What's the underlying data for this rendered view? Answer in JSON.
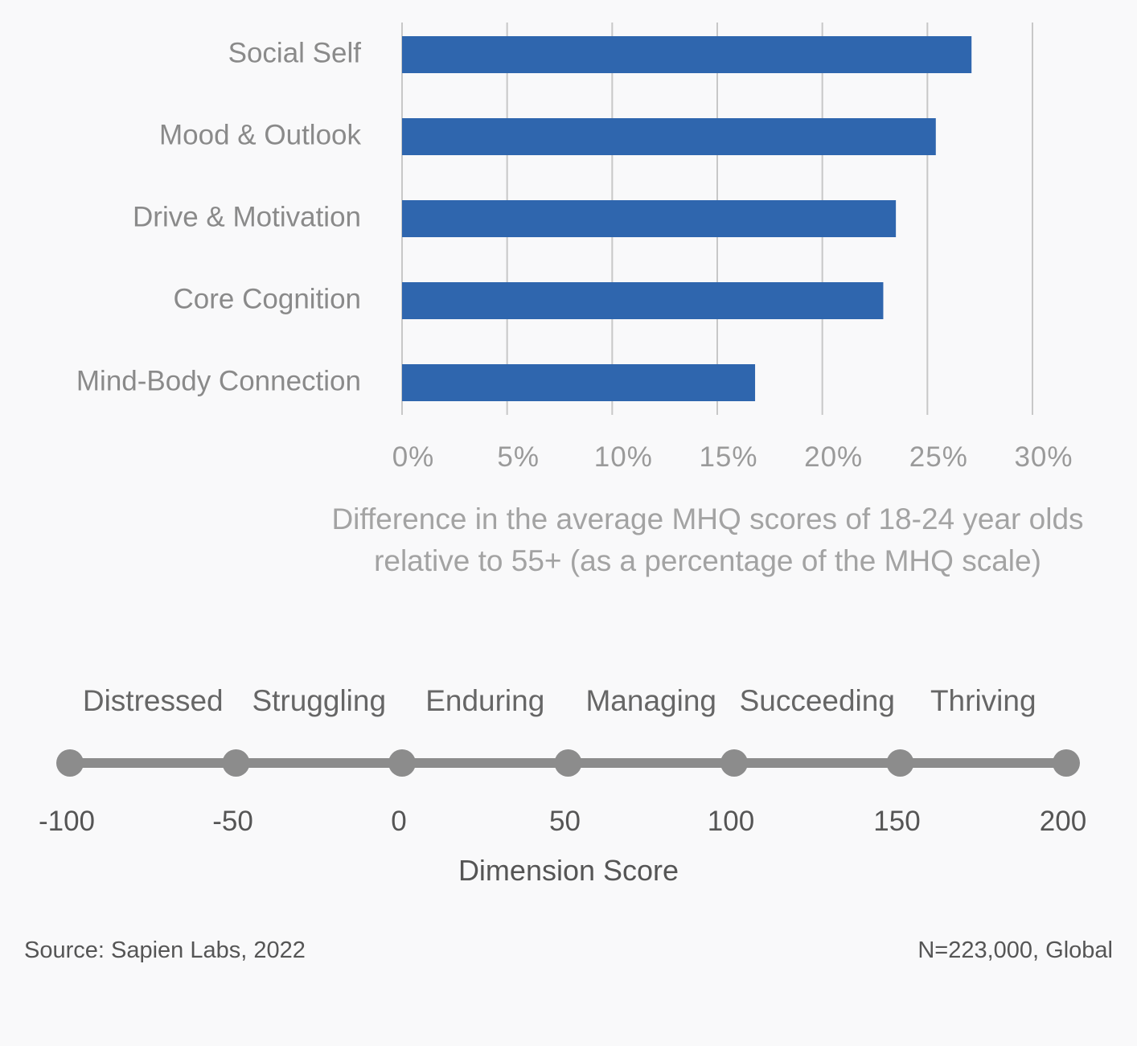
{
  "chart_data": {
    "type": "bar",
    "orientation": "horizontal",
    "categories": [
      "Social Self",
      "Mood & Outlook",
      "Drive & Motivation",
      "Core Cognition",
      "Mind-Body Connection"
    ],
    "values": [
      27.1,
      25.4,
      23.5,
      22.9,
      16.8
    ],
    "value_format": "percent",
    "xlim": [
      0,
      30
    ],
    "x_ticks": [
      "0%",
      "5%",
      "10%",
      "15%",
      "20%",
      "25%",
      "30%"
    ],
    "xlabel": "Difference in the average MHQ scores of 18-24 year olds relative to 55+ (as a percentage of the MHQ scale)",
    "grid": true,
    "bar_color": "#2f66ae"
  },
  "scale": {
    "categories": [
      "Distressed",
      "Struggling",
      "Enduring",
      "Managing",
      "Succeeding",
      "Thriving"
    ],
    "ticks": [
      "-100",
      "-50",
      "0",
      "50",
      "100",
      "150",
      "200"
    ],
    "title": "Dimension Score",
    "line_color": "#8c8c8c"
  },
  "footer": {
    "source": "Source: Sapien Labs, 2022",
    "sample": "N=223,000, Global"
  }
}
